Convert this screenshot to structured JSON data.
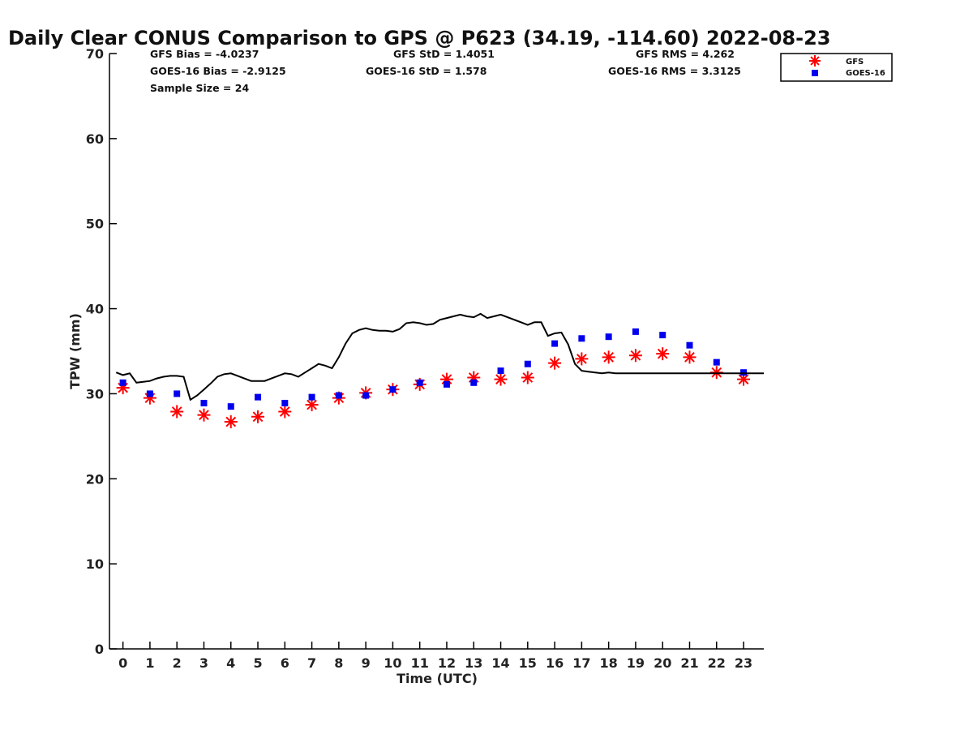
{
  "chart_data": {
    "type": "scatter",
    "title": "Daily Clear CONUS Comparison to GPS @ P623 (34.19, -114.60) 2022-08-23",
    "xlabel": "Time (UTC)",
    "ylabel": "TPW (mm)",
    "xlim": [
      -0.5,
      23.75
    ],
    "ylim": [
      0,
      70
    ],
    "x_ticks": [
      "0",
      "1",
      "2",
      "3",
      "4",
      "5",
      "6",
      "7",
      "8",
      "9",
      "10",
      "11",
      "12",
      "13",
      "14",
      "15",
      "16",
      "17",
      "18",
      "19",
      "20",
      "21",
      "22",
      "23"
    ],
    "y_ticks": [
      "0",
      "10",
      "20",
      "30",
      "40",
      "50",
      "60",
      "70"
    ],
    "grid": false,
    "legend_position": "top-right outside",
    "stats": {
      "gfs_bias": "GFS Bias = -4.0237",
      "goes_bias": "GOES-16 Bias = -2.9125",
      "sample_size": "Sample Size = 24",
      "gfs_std": "GFS StD = 1.4051",
      "goes_std": "GOES-16 StD = 1.578",
      "gfs_rms": "GFS RMS = 4.262",
      "goes_rms": "GOES-16 RMS = 3.3125"
    },
    "series": [
      {
        "name": "GFS",
        "marker": "asterisk",
        "color": "#ff0000",
        "x": [
          0,
          1,
          2,
          3,
          4,
          5,
          6,
          7,
          8,
          9,
          10,
          11,
          12,
          13,
          14,
          15,
          16,
          17,
          18,
          19,
          20,
          21,
          22,
          23
        ],
        "values": [
          30.7,
          29.5,
          27.9,
          27.5,
          26.7,
          27.3,
          27.9,
          28.7,
          29.5,
          30.1,
          30.5,
          31.1,
          31.7,
          31.9,
          31.7,
          31.9,
          33.6,
          34.1,
          34.3,
          34.5,
          34.7,
          34.3,
          32.5,
          31.7
        ]
      },
      {
        "name": "GOES-16",
        "marker": "square",
        "color": "#0000ee",
        "x": [
          0,
          1,
          2,
          3,
          4,
          5,
          6,
          7,
          8,
          9,
          10,
          11,
          12,
          13,
          14,
          15,
          16,
          17,
          18,
          19,
          20,
          21,
          22,
          23
        ],
        "values": [
          31.3,
          30.0,
          30.0,
          28.9,
          28.5,
          29.6,
          28.9,
          29.6,
          29.8,
          29.8,
          30.5,
          31.3,
          31.1,
          31.3,
          32.7,
          33.5,
          35.9,
          36.5,
          36.7,
          37.3,
          36.9,
          35.7,
          33.7,
          32.5
        ]
      },
      {
        "marker": "line",
        "color": "#000000",
        "x": [
          -0.25,
          0,
          0.25,
          0.5,
          0.75,
          1,
          1.25,
          1.5,
          1.75,
          2,
          2.25,
          2.5,
          2.75,
          3,
          3.25,
          3.5,
          3.75,
          4,
          4.25,
          4.5,
          4.75,
          5,
          5.25,
          5.5,
          5.75,
          6,
          6.25,
          6.5,
          6.75,
          7,
          7.25,
          7.5,
          7.75,
          8,
          8.25,
          8.5,
          8.75,
          9,
          9.25,
          9.5,
          9.75,
          10,
          10.25,
          10.5,
          10.75,
          11,
          11.25,
          11.5,
          11.75,
          12,
          12.25,
          12.5,
          12.75,
          13,
          13.25,
          13.5,
          13.75,
          14,
          14.25,
          14.5,
          14.75,
          15,
          15.25,
          15.5,
          15.75,
          16,
          16.25,
          16.5,
          16.75,
          17,
          17.25,
          17.5,
          17.75,
          18,
          18.25,
          18.5,
          18.75,
          19,
          19.25,
          19.5,
          19.75,
          20,
          20.25,
          20.5,
          20.75,
          21,
          21.25,
          21.5,
          21.75,
          22,
          22.25,
          22.5,
          22.75,
          23,
          23.25,
          23.5,
          23.75
        ],
        "values": [
          32.5,
          32.2,
          32.4,
          31.3,
          31.4,
          31.5,
          31.8,
          32.0,
          32.1,
          32.1,
          32.0,
          29.3,
          29.8,
          30.5,
          31.2,
          32.0,
          32.3,
          32.4,
          32.1,
          31.8,
          31.5,
          31.5,
          31.5,
          31.8,
          32.1,
          32.4,
          32.3,
          32.0,
          32.5,
          33.0,
          33.5,
          33.3,
          33.0,
          34.3,
          35.9,
          37.1,
          37.5,
          37.7,
          37.5,
          37.4,
          37.4,
          37.3,
          37.6,
          38.3,
          38.4,
          38.3,
          38.1,
          38.2,
          38.7,
          38.9,
          39.1,
          39.3,
          39.1,
          39.0,
          39.4,
          38.9,
          39.1,
          39.3,
          39.0,
          38.7,
          38.4,
          38.1,
          38.4,
          38.4,
          36.8,
          37.1,
          37.2,
          35.8,
          33.5,
          32.7,
          32.6,
          32.5,
          32.4,
          32.5,
          32.4,
          32.4,
          32.4,
          32.4,
          32.4,
          32.4,
          32.4,
          32.4,
          32.4,
          32.4,
          32.4,
          32.4,
          32.4,
          32.4,
          32.4,
          32.4,
          32.4,
          32.4,
          32.4,
          32.4,
          32.4,
          32.4,
          32.4
        ]
      }
    ]
  }
}
